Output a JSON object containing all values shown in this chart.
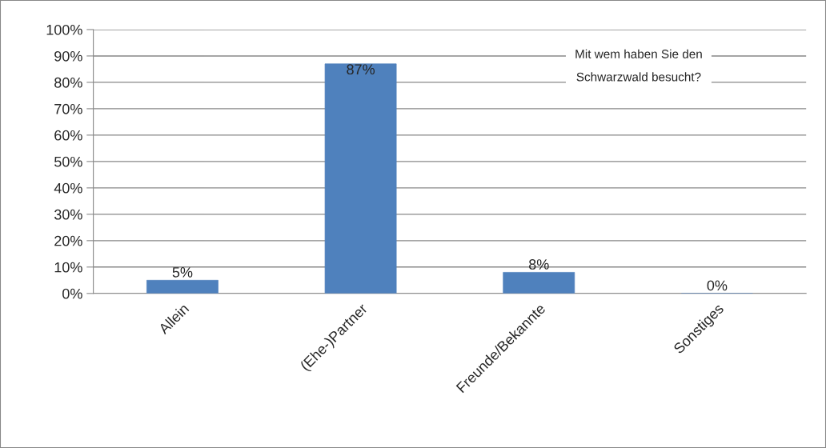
{
  "chart_data": {
    "type": "bar",
    "title": "Mit wem haben Sie den\nSchwarzwald besucht?",
    "categories": [
      "Allein",
      "(Ehe-)Partner",
      "Freunde/Bekannte",
      "Sonstiges"
    ],
    "values": [
      5,
      87,
      8,
      0
    ],
    "color": "#4f81bd",
    "value_labels": [
      "5%",
      "87%",
      "8%",
      "0%"
    ],
    "ylim": [
      0,
      100
    ],
    "yticks": [
      {
        "value": 0,
        "label": "0%"
      },
      {
        "value": 10,
        "label": "10%"
      },
      {
        "value": 20,
        "label": "20%"
      },
      {
        "value": 30,
        "label": "30%"
      },
      {
        "value": 40,
        "label": "40%"
      },
      {
        "value": 50,
        "label": "50%"
      },
      {
        "value": 60,
        "label": "60%"
      },
      {
        "value": 70,
        "label": "70%"
      },
      {
        "value": 80,
        "label": "80%"
      },
      {
        "value": 90,
        "label": "90%"
      },
      {
        "value": 100,
        "label": "100%"
      }
    ],
    "grid": "y"
  }
}
